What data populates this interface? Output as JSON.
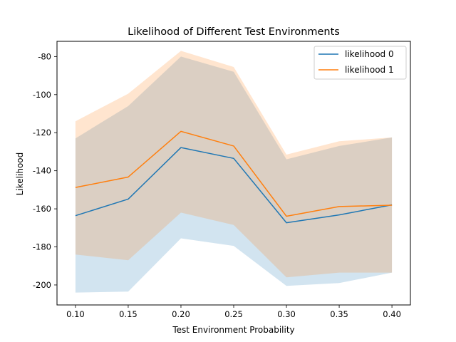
{
  "chart_data": {
    "type": "line",
    "title": "Likelihood of Different Test Environments",
    "xlabel": "Test Environment Probability",
    "ylabel": "Likelihood",
    "x": [
      0.1,
      0.15,
      0.2,
      0.25,
      0.3,
      0.35,
      0.4
    ],
    "x_ticks": [
      "0.10",
      "0.15",
      "0.20",
      "0.25",
      "0.30",
      "0.35",
      "0.40"
    ],
    "y_ticks": [
      "-80",
      "-100",
      "-120",
      "-140",
      "-160",
      "-180",
      "-200"
    ],
    "y_tick_values": [
      -80,
      -100,
      -120,
      -140,
      -160,
      -180,
      -200
    ],
    "xlim": [
      0.0825,
      0.4175
    ],
    "ylim": [
      -210.5,
      -72.0
    ],
    "legend_location": "top-right",
    "series": [
      {
        "name": "likelihood 0",
        "color": "#1f77b4",
        "band_color": "#1f77b4",
        "values": [
          -163.6,
          -154.9,
          -127.8,
          -133.5,
          -167.3,
          -163.2,
          -157.9
        ],
        "band_upper": [
          -123.0,
          -106.0,
          -80.0,
          -88.0,
          -134.0,
          -127.0,
          -122.5
        ],
        "band_lower": [
          -204.0,
          -203.5,
          -175.5,
          -179.5,
          -200.5,
          -199.0,
          -193.5
        ]
      },
      {
        "name": "likelihood 1",
        "color": "#ff7f0e",
        "band_color": "#ff7f0e",
        "values": [
          -148.8,
          -143.3,
          -119.3,
          -127.0,
          -163.9,
          -158.8,
          -158.1
        ],
        "band_upper": [
          -114.0,
          -99.5,
          -77.0,
          -85.5,
          -131.5,
          -124.5,
          -122.5
        ],
        "band_lower": [
          -184.0,
          -187.0,
          -162.0,
          -168.5,
          -196.0,
          -193.5,
          -193.5
        ]
      }
    ]
  }
}
